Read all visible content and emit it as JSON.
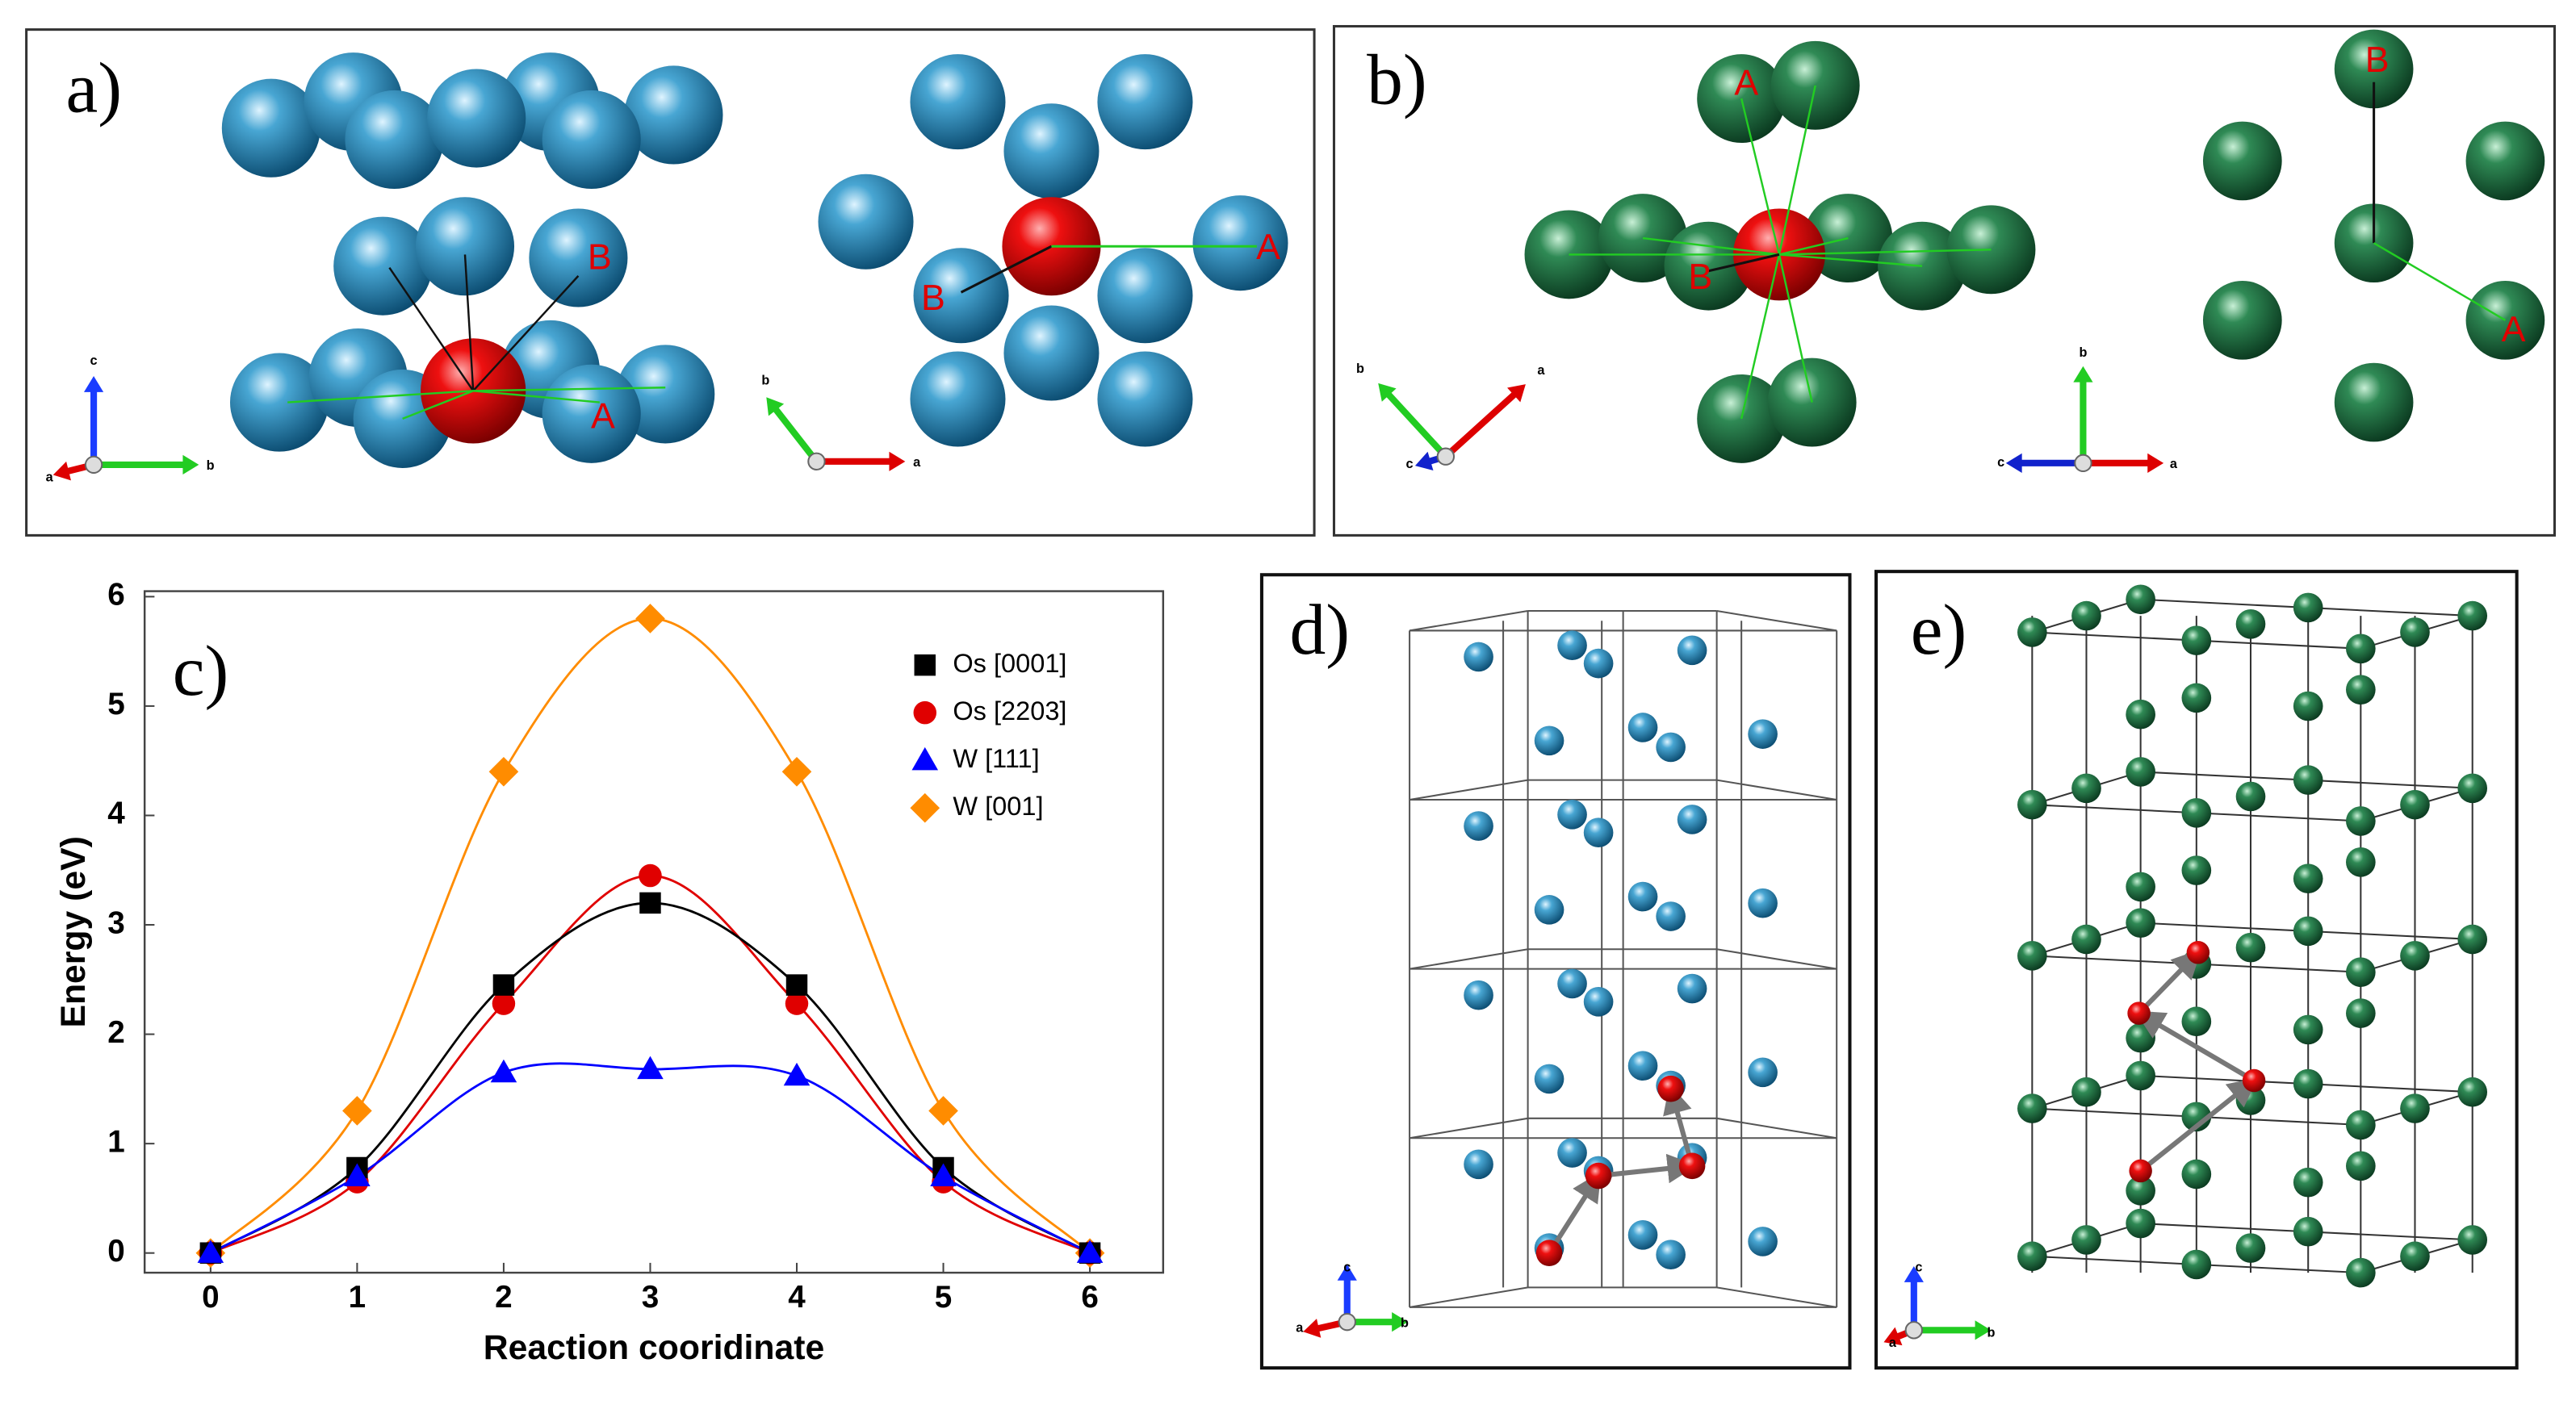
{
  "panels": {
    "a": {
      "label": "a)",
      "sites": [
        "B",
        "A",
        "B",
        "A"
      ],
      "axes": [
        "c",
        "b",
        "a",
        "b",
        "a"
      ]
    },
    "b": {
      "label": "b)",
      "sites": [
        "A",
        "B",
        "B",
        "A"
      ],
      "axes": [
        "b",
        "a",
        "c",
        "b",
        "c",
        "a"
      ]
    },
    "d": {
      "label": "d)",
      "axes": [
        "c",
        "a",
        "b"
      ]
    },
    "e": {
      "label": "e)",
      "axes": [
        "c",
        "a",
        "b"
      ]
    }
  },
  "chart_data": {
    "type": "line",
    "panel_label": "c)",
    "x_label": "Reaction cooridinate",
    "y_label": "Energy (eV)",
    "x": [
      0,
      1,
      2,
      3,
      4,
      5,
      6
    ],
    "series": [
      {
        "name": "Os [0001]",
        "color": "#000000",
        "marker": "square",
        "values": [
          0,
          0.78,
          2.45,
          3.2,
          2.45,
          0.78,
          0
        ]
      },
      {
        "name": "Os [2203]",
        "color": "#e00000",
        "marker": "circle",
        "values": [
          0,
          0.65,
          2.28,
          3.45,
          2.28,
          0.65,
          0
        ]
      },
      {
        "name": "W [111]",
        "color": "#0000ff",
        "marker": "triangle",
        "values": [
          0,
          0.7,
          1.65,
          1.68,
          1.62,
          0.7,
          0
        ]
      },
      {
        "name": "W [001]",
        "color": "#ff8c00",
        "marker": "diamond",
        "values": [
          0,
          1.3,
          4.4,
          5.8,
          4.4,
          1.3,
          0
        ]
      }
    ],
    "xlim": [
      -0.45,
      6.5
    ],
    "ylim": [
      -0.18,
      6.05
    ],
    "xticks": [
      0,
      1,
      2,
      3,
      4,
      5,
      6
    ],
    "yticks": [
      0,
      1,
      2,
      3,
      4,
      5,
      6
    ],
    "legend": "upper right"
  }
}
